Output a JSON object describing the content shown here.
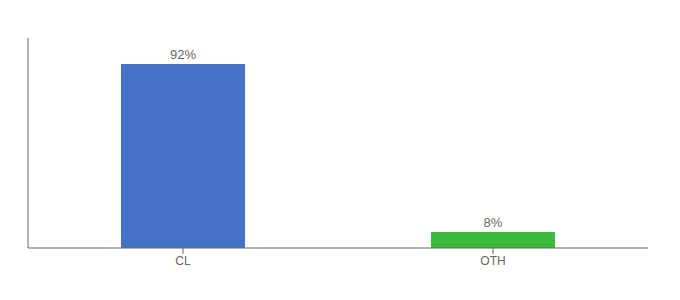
{
  "chart_data": {
    "type": "bar",
    "categories": [
      "CL",
      "OTH"
    ],
    "values": [
      92,
      8
    ],
    "value_labels": [
      "92%",
      "8%"
    ],
    "colors": [
      "#4472c4",
      "#3dbb3d"
    ],
    "ylim": [
      0,
      105
    ],
    "data_labels": true,
    "tick_labels": "x"
  }
}
